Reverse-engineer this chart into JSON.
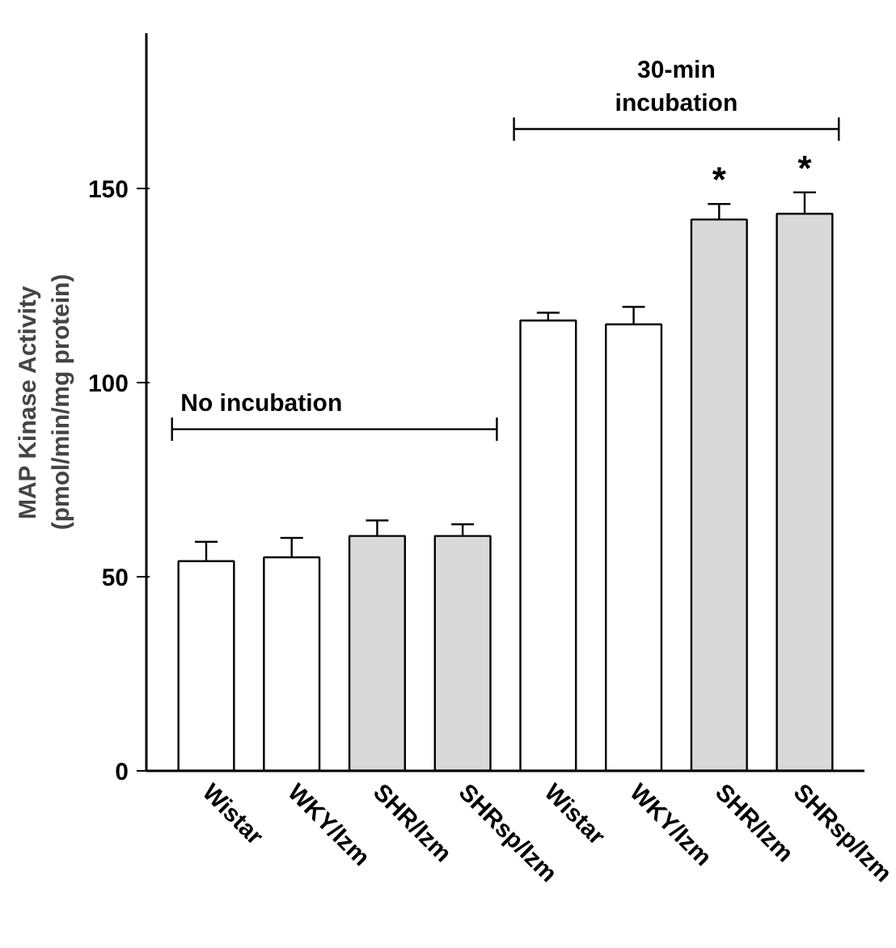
{
  "chart_data": {
    "type": "bar",
    "ylabel": "MAP Kinase Activity\n(pmol/min/mg protein)",
    "categories": [
      "Wistar",
      "WKY/Izm",
      "SHR/Izm",
      "SHRsp/Izm",
      "Wistar",
      "WKY/Izm",
      "SHR/Izm",
      "SHRsp/Izm"
    ],
    "values": [
      54,
      55,
      60.5,
      60.5,
      116,
      115,
      142,
      143.5
    ],
    "errors": [
      5,
      5,
      4,
      3,
      2,
      4.5,
      4,
      5.5
    ],
    "colors": [
      "#ffffff",
      "#ffffff",
      "#d9d9d9",
      "#d9d9d9",
      "#ffffff",
      "#ffffff",
      "#d9d9d9",
      "#d9d9d9"
    ],
    "ylim": [
      0,
      190
    ],
    "yticks": [
      0,
      50,
      100,
      150
    ],
    "grid": false,
    "annotations": [
      "No incubation",
      "30-min incubation",
      "*",
      "*"
    ]
  }
}
